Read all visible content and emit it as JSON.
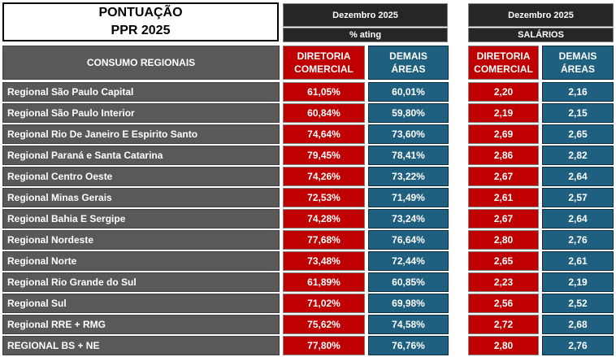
{
  "title": {
    "line1": "PONTUAÇÃO",
    "line2": "PPR 2025"
  },
  "section_label": "CONSUMO REGIONAIS",
  "groups": [
    {
      "period": "Dezembro 2025",
      "subtitle": "% ating"
    },
    {
      "period": "Dezembro 2025",
      "subtitle": "SALÁRIOS"
    }
  ],
  "columns": {
    "diretoria": {
      "line1": "DIRETORIA",
      "line2": "COMERCIAL"
    },
    "demais": {
      "line1": "DEMAIS",
      "line2": "ÁREAS"
    }
  },
  "colors": {
    "red": "#c00000",
    "blue": "#1f5f7f",
    "grey": "#595959",
    "dark": "#262626"
  },
  "rows": [
    {
      "label": "Regional São Paulo Capital",
      "pct_dir": "61,05%",
      "pct_dem": "60,01%",
      "sal_dir": "2,20",
      "sal_dem": "2,16"
    },
    {
      "label": "Regional São Paulo Interior",
      "pct_dir": "60,84%",
      "pct_dem": "59,80%",
      "sal_dir": "2,19",
      "sal_dem": "2,15"
    },
    {
      "label": "Regional Rio De Janeiro E Espirito Santo",
      "pct_dir": "74,64%",
      "pct_dem": "73,60%",
      "sal_dir": "2,69",
      "sal_dem": "2,65"
    },
    {
      "label": "Regional Paraná e Santa Catarina",
      "pct_dir": "79,45%",
      "pct_dem": "78,41%",
      "sal_dir": "2,86",
      "sal_dem": "2,82"
    },
    {
      "label": "Regional Centro Oeste",
      "pct_dir": "74,26%",
      "pct_dem": "73,22%",
      "sal_dir": "2,67",
      "sal_dem": "2,64"
    },
    {
      "label": "Regional Minas Gerais",
      "pct_dir": "72,53%",
      "pct_dem": "71,49%",
      "sal_dir": "2,61",
      "sal_dem": "2,57"
    },
    {
      "label": "Regional Bahia E Sergipe",
      "pct_dir": "74,28%",
      "pct_dem": "73,24%",
      "sal_dir": "2,67",
      "sal_dem": "2,64"
    },
    {
      "label": "Regional Nordeste",
      "pct_dir": "77,68%",
      "pct_dem": "76,64%",
      "sal_dir": "2,80",
      "sal_dem": "2,76"
    },
    {
      "label": "Regional Norte",
      "pct_dir": "73,48%",
      "pct_dem": "72,44%",
      "sal_dir": "2,65",
      "sal_dem": "2,61"
    },
    {
      "label": "Regional Rio Grande do Sul",
      "pct_dir": "61,89%",
      "pct_dem": "60,85%",
      "sal_dir": "2,23",
      "sal_dem": "2,19"
    },
    {
      "label": "Regional Sul",
      "pct_dir": "71,02%",
      "pct_dem": "69,98%",
      "sal_dir": "2,56",
      "sal_dem": "2,52"
    },
    {
      "label": "Regional RRE + RMG",
      "pct_dir": "75,62%",
      "pct_dem": "74,58%",
      "sal_dir": "2,72",
      "sal_dem": "2,68"
    },
    {
      "label": "REGIONAL BS + NE",
      "pct_dir": "77,80%",
      "pct_dem": "76,76%",
      "sal_dir": "2,80",
      "sal_dem": "2,76"
    }
  ]
}
